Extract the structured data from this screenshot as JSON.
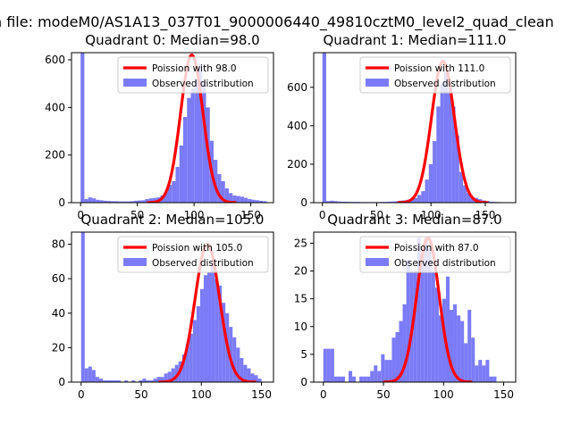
{
  "figure_title": "n file: modeM0/AS1A13_037T01_9000006440_49810cztM0_level2_quad_clean",
  "legend_labels": {
    "poisson_prefix": "Poission with ",
    "observed": "Observed distribution"
  },
  "colors": {
    "hist": "#7b7bf7",
    "poisson": "#ff0000",
    "axis": "#000000",
    "background": "#ffffff"
  },
  "chart_data": [
    {
      "type": "bar",
      "title": "Quadrant 0: Median=98.0",
      "median": 98.0,
      "legend": {
        "placement": "upper right",
        "entries": [
          "Poission with 98.0",
          "Observed distribution"
        ]
      },
      "xlim": [
        -8,
        170
      ],
      "ylim": [
        0,
        630
      ],
      "xticks": [
        0,
        50,
        100,
        150
      ],
      "yticks": [
        0,
        200,
        400,
        600
      ],
      "bin_width": 3.35,
      "hist": [
        [
          0,
          640
        ],
        [
          3.35,
          15
        ],
        [
          6.7,
          22
        ],
        [
          10.05,
          18
        ],
        [
          13.4,
          12
        ],
        [
          16.75,
          10
        ],
        [
          20.1,
          8
        ],
        [
          23.45,
          7
        ],
        [
          26.8,
          6
        ],
        [
          30.15,
          6
        ],
        [
          33.5,
          5
        ],
        [
          36.85,
          5
        ],
        [
          40.2,
          5
        ],
        [
          43.55,
          6
        ],
        [
          46.9,
          8
        ],
        [
          50.25,
          9
        ],
        [
          53.6,
          10
        ],
        [
          56.95,
          15
        ],
        [
          60.3,
          18
        ],
        [
          63.65,
          20
        ],
        [
          67,
          22
        ],
        [
          70.35,
          30
        ],
        [
          73.7,
          45
        ],
        [
          77.05,
          75
        ],
        [
          80.4,
          90
        ],
        [
          83.75,
          150
        ],
        [
          87.1,
          240
        ],
        [
          90.45,
          360
        ],
        [
          93.8,
          440
        ],
        [
          97.15,
          480
        ],
        [
          100.5,
          520
        ],
        [
          103.85,
          580
        ],
        [
          107.2,
          510
        ],
        [
          110.55,
          400
        ],
        [
          113.9,
          260
        ],
        [
          117.25,
          180
        ],
        [
          120.6,
          120
        ],
        [
          123.95,
          90
        ],
        [
          127.3,
          60
        ],
        [
          130.65,
          40
        ],
        [
          134,
          30
        ],
        [
          137.35,
          28
        ],
        [
          140.7,
          25
        ],
        [
          144.05,
          20
        ],
        [
          147.4,
          15
        ],
        [
          150.75,
          12
        ],
        [
          154.1,
          10
        ],
        [
          157.45,
          8
        ],
        [
          160.8,
          6
        ]
      ],
      "poisson_peak": 620,
      "poisson_sigma": 9.9
    },
    {
      "type": "bar",
      "title": "Quadrant 1: Median=111.0",
      "median": 111.0,
      "legend": {
        "placement": "upper right",
        "entries": [
          "Poission with 111.0",
          "Observed distribution"
        ]
      },
      "xlim": [
        -8,
        178
      ],
      "ylim": [
        0,
        780
      ],
      "xticks": [
        0,
        50,
        100,
        150
      ],
      "yticks": [
        0,
        200,
        400,
        600
      ],
      "bin_width": 3.5,
      "hist": [
        [
          0,
          800
        ],
        [
          3.5,
          8
        ],
        [
          7,
          10
        ],
        [
          10.5,
          8
        ],
        [
          14,
          6
        ],
        [
          17.5,
          5
        ],
        [
          21,
          5
        ],
        [
          24.5,
          4
        ],
        [
          28,
          4
        ],
        [
          31.5,
          4
        ],
        [
          35,
          3
        ],
        [
          38.5,
          3
        ],
        [
          42,
          3
        ],
        [
          45.5,
          3
        ],
        [
          49,
          3
        ],
        [
          52.5,
          4
        ],
        [
          56,
          4
        ],
        [
          59.5,
          5
        ],
        [
          63,
          6
        ],
        [
          66.5,
          7
        ],
        [
          70,
          10
        ],
        [
          73.5,
          12
        ],
        [
          77,
          15
        ],
        [
          80.5,
          20
        ],
        [
          84,
          25
        ],
        [
          87.5,
          40
        ],
        [
          91,
          60
        ],
        [
          94.5,
          120
        ],
        [
          98,
          200
        ],
        [
          101.5,
          320
        ],
        [
          105,
          500
        ],
        [
          108.5,
          620
        ],
        [
          112,
          680
        ],
        [
          115.5,
          580
        ],
        [
          119,
          500
        ],
        [
          122.5,
          350
        ],
        [
          126,
          160
        ],
        [
          129.5,
          90
        ],
        [
          133,
          50
        ],
        [
          136.5,
          30
        ],
        [
          140,
          25
        ],
        [
          143.5,
          18
        ],
        [
          147,
          12
        ],
        [
          150.5,
          8
        ],
        [
          154,
          5
        ],
        [
          157.5,
          4
        ],
        [
          161,
          3
        ],
        [
          164.5,
          2
        ]
      ],
      "poisson_peak": 735,
      "poisson_sigma": 10.5
    },
    {
      "type": "bar",
      "title": "Quadrant 2: Median=105.0",
      "median": 105.0,
      "legend": {
        "placement": "upper right",
        "entries": [
          "Poission with 105.0",
          "Observed distribution"
        ]
      },
      "xlim": [
        -8,
        160
      ],
      "ylim": [
        0,
        87
      ],
      "xticks": [
        0,
        50,
        100,
        150
      ],
      "yticks": [
        0,
        20,
        40,
        60,
        80
      ],
      "bin_width": 3.0,
      "hist": [
        [
          0,
          90
        ],
        [
          3,
          8
        ],
        [
          6,
          9
        ],
        [
          9,
          7
        ],
        [
          12,
          3
        ],
        [
          15,
          2
        ],
        [
          18,
          1
        ],
        [
          21,
          1
        ],
        [
          24,
          1
        ],
        [
          27,
          1
        ],
        [
          30,
          1
        ],
        [
          33,
          0
        ],
        [
          36,
          1
        ],
        [
          39,
          0
        ],
        [
          42,
          1
        ],
        [
          45,
          0
        ],
        [
          48,
          1
        ],
        [
          51,
          2
        ],
        [
          54,
          1
        ],
        [
          57,
          1
        ],
        [
          60,
          2
        ],
        [
          63,
          3
        ],
        [
          66,
          3
        ],
        [
          69,
          5
        ],
        [
          72,
          6
        ],
        [
          75,
          8
        ],
        [
          78,
          10
        ],
        [
          81,
          12
        ],
        [
          84,
          16
        ],
        [
          87,
          22
        ],
        [
          90,
          28
        ],
        [
          93,
          36
        ],
        [
          96,
          44
        ],
        [
          99,
          54
        ],
        [
          102,
          62
        ],
        [
          105,
          64
        ],
        [
          108,
          68
        ],
        [
          111,
          60
        ],
        [
          114,
          56
        ],
        [
          117,
          46
        ],
        [
          120,
          40
        ],
        [
          123,
          32
        ],
        [
          126,
          26
        ],
        [
          129,
          20
        ],
        [
          132,
          14
        ],
        [
          135,
          10
        ],
        [
          138,
          8
        ],
        [
          141,
          5
        ],
        [
          144,
          4
        ],
        [
          147,
          2
        ]
      ],
      "poisson_peak": 80,
      "poisson_sigma": 10.2
    },
    {
      "type": "bar",
      "title": "Quadrant 3: Median=87.0",
      "median": 87.0,
      "legend": {
        "placement": "upper right",
        "entries": [
          "Poission with 87.0",
          "Observed distribution"
        ]
      },
      "xlim": [
        -8,
        160
      ],
      "ylim": [
        0,
        27
      ],
      "xticks": [
        0,
        50,
        100,
        150
      ],
      "yticks": [
        0,
        5,
        10,
        15,
        20,
        25
      ],
      "bin_width": 3.0,
      "hist": [
        [
          0,
          6
        ],
        [
          3,
          6
        ],
        [
          6,
          6
        ],
        [
          9,
          1
        ],
        [
          12,
          1
        ],
        [
          15,
          1
        ],
        [
          18,
          0
        ],
        [
          21,
          2
        ],
        [
          24,
          1
        ],
        [
          27,
          0
        ],
        [
          30,
          1
        ],
        [
          33,
          1
        ],
        [
          36,
          1
        ],
        [
          39,
          2
        ],
        [
          42,
          3
        ],
        [
          45,
          2
        ],
        [
          48,
          5
        ],
        [
          51,
          4
        ],
        [
          54,
          4
        ],
        [
          57,
          8
        ],
        [
          60,
          9
        ],
        [
          63,
          11
        ],
        [
          66,
          14
        ],
        [
          69,
          22
        ],
        [
          72,
          20
        ],
        [
          75,
          20
        ],
        [
          78,
          26
        ],
        [
          81,
          23
        ],
        [
          84,
          26
        ],
        [
          87,
          24
        ],
        [
          90,
          20
        ],
        [
          93,
          17
        ],
        [
          96,
          12
        ],
        [
          99,
          15
        ],
        [
          102,
          19
        ],
        [
          105,
          13
        ],
        [
          108,
          14
        ],
        [
          111,
          12
        ],
        [
          114,
          11
        ],
        [
          117,
          7
        ],
        [
          120,
          13
        ],
        [
          123,
          8
        ],
        [
          126,
          3
        ],
        [
          129,
          4
        ],
        [
          132,
          3
        ],
        [
          135,
          4
        ],
        [
          138,
          1
        ],
        [
          141,
          1
        ]
      ],
      "poisson_peak": 26,
      "poisson_sigma": 9.3
    }
  ]
}
